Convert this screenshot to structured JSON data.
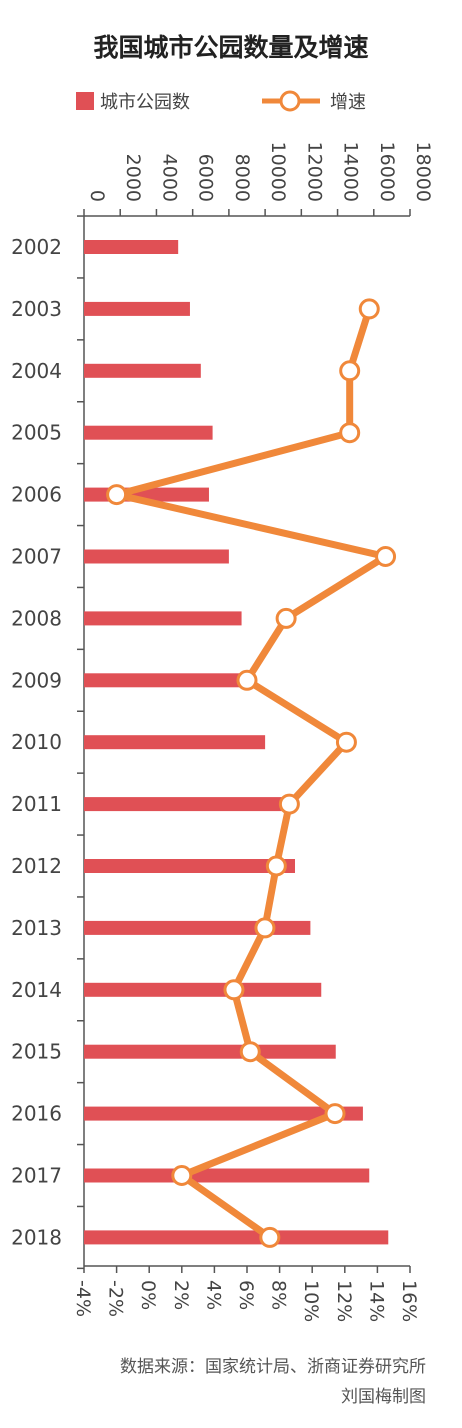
{
  "title": "我国城市公园数量及增速",
  "legend": {
    "bar": "城市公园数",
    "line": "增速"
  },
  "source": "数据来源：国家统计局、浙商证券研究所",
  "credit": "刘国梅制图",
  "colors": {
    "bar": "#e05055",
    "line": "#f0883a",
    "axis": "#555555"
  },
  "chart_data": {
    "type": "bar",
    "orientation": "horizontal",
    "categories": [
      "2002",
      "2003",
      "2004",
      "2005",
      "2006",
      "2007",
      "2008",
      "2009",
      "2010",
      "2011",
      "2012",
      "2013",
      "2014",
      "2015",
      "2016",
      "2017",
      "2018"
    ],
    "series": [
      {
        "name": "城市公园数",
        "type": "bar",
        "axis": "top",
        "values": [
          5200,
          5850,
          6450,
          7100,
          6900,
          8000,
          8700,
          9000,
          10000,
          11050,
          11650,
          12500,
          13100,
          13900,
          15400,
          15750,
          16800
        ]
      },
      {
        "name": "增速",
        "type": "line",
        "axis": "bottom",
        "unit": "%",
        "values": [
          null,
          13.5,
          12.3,
          12.3,
          -2.0,
          14.5,
          8.4,
          6.0,
          12.1,
          8.6,
          7.8,
          7.1,
          5.2,
          6.2,
          11.4,
          2.0,
          7.4
        ]
      }
    ],
    "top_axis": {
      "min": 0,
      "max": 18000,
      "ticks": [
        "0",
        "2000",
        "4000",
        "6000",
        "8000",
        "10000",
        "12000",
        "14000",
        "16000",
        "18000"
      ]
    },
    "bottom_axis": {
      "min": -4,
      "max": 16,
      "ticks": [
        "-4%",
        "-2%",
        "0%",
        "2%",
        "4%",
        "6%",
        "8%",
        "10%",
        "12%",
        "14%",
        "16%"
      ]
    },
    "legend_position": "top-left"
  }
}
